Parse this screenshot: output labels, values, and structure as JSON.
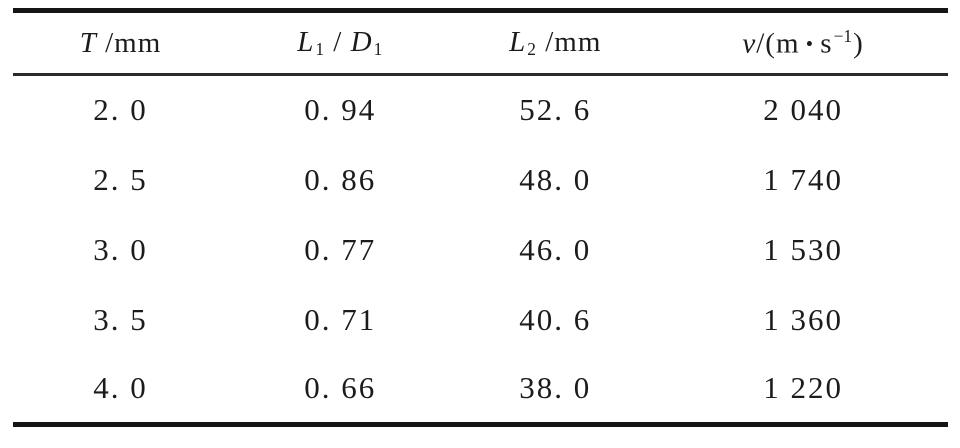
{
  "page": {
    "background": "#ffffff",
    "text_color": "#1c1c1c",
    "rule_color": "#151515"
  },
  "table": {
    "headers": [
      {
        "name": "thickness",
        "parts": [
          {
            "t": "T",
            "style": "var"
          },
          {
            "t": " /mm",
            "style": "plain"
          }
        ]
      },
      {
        "name": "l1-d1-ratio",
        "parts": [
          {
            "t": "L",
            "style": "var"
          },
          {
            "t": "1",
            "style": "sub"
          },
          {
            "t": " / ",
            "style": "plain"
          },
          {
            "t": "D",
            "style": "var"
          },
          {
            "t": "1",
            "style": "sub"
          }
        ]
      },
      {
        "name": "l2-length",
        "parts": [
          {
            "t": "L",
            "style": "var"
          },
          {
            "t": "2",
            "style": "sub"
          },
          {
            "t": " /mm",
            "style": "plain"
          }
        ]
      },
      {
        "name": "velocity",
        "parts": [
          {
            "t": "v",
            "style": "var"
          },
          {
            "t": "/(m",
            "style": "plain"
          },
          {
            "t": " • ",
            "style": "dot"
          },
          {
            "t": "s",
            "style": "plain"
          },
          {
            "t": "−1",
            "style": "sup"
          },
          {
            "t": ")",
            "style": "plain"
          }
        ]
      }
    ],
    "rows": [
      {
        "cells": [
          "2. 0",
          "0. 94",
          "52. 6",
          "2 040"
        ]
      },
      {
        "cells": [
          "2. 5",
          "0. 86",
          "48. 0",
          "1 740"
        ]
      },
      {
        "cells": [
          "3. 0",
          "0. 77",
          "46. 0",
          "1 530"
        ]
      },
      {
        "cells": [
          "3. 5",
          "0. 71",
          "40. 6",
          "1 360"
        ]
      },
      {
        "cells": [
          "4. 0",
          "0. 66",
          "38. 0",
          "1 220"
        ]
      }
    ]
  },
  "chart_data": {
    "type": "table",
    "columns": [
      "T/mm",
      "L1/D1",
      "L2/mm",
      "v/(m·s⁻¹)"
    ],
    "rows": [
      [
        2.0,
        0.94,
        52.6,
        2040
      ],
      [
        2.5,
        0.86,
        48.0,
        1740
      ],
      [
        3.0,
        0.77,
        46.0,
        1530
      ],
      [
        3.5,
        0.71,
        40.6,
        1360
      ],
      [
        4.0,
        0.66,
        38.0,
        1220
      ]
    ]
  }
}
